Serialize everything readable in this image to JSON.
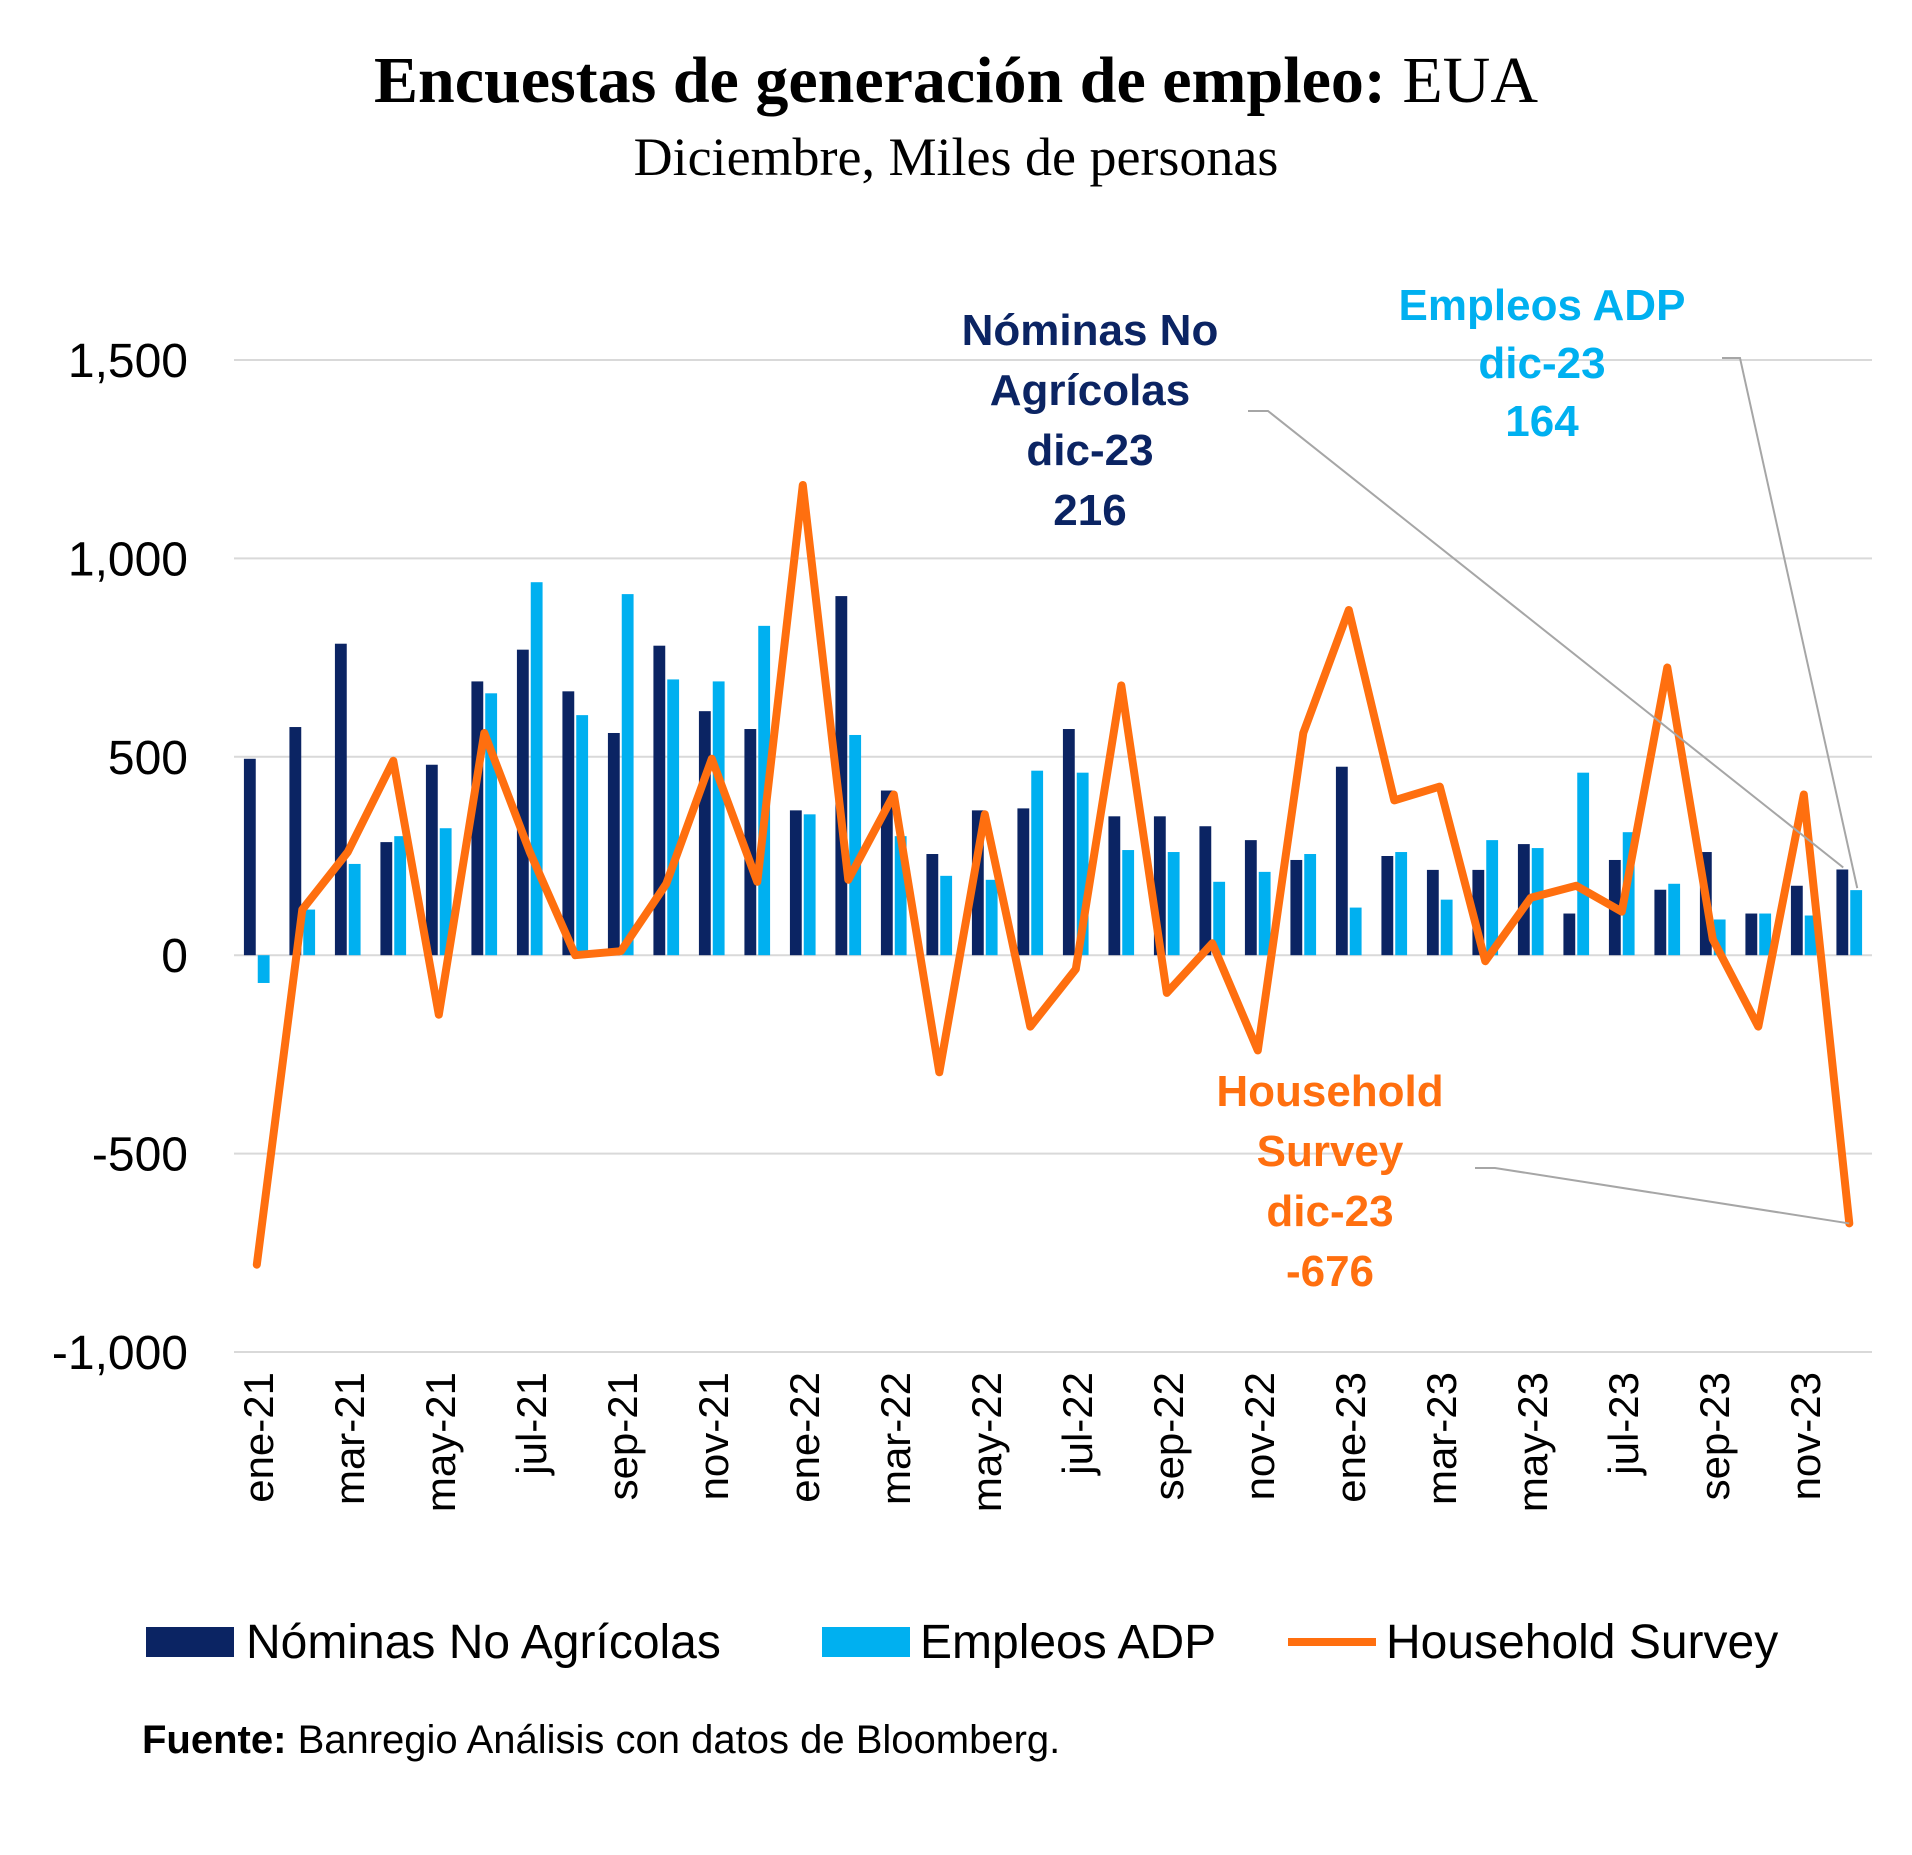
{
  "title": {
    "bold": "Encuestas de generación de empleo:",
    "normal": "EUA",
    "subtitle": "Diciembre, Miles de personas"
  },
  "colors": {
    "nominas": "#0b2463",
    "adp": "#00b0f0",
    "household": "#ff6f0f",
    "grid": "#d9d9d9",
    "leader": "#a6a6a6"
  },
  "chart_data": {
    "type": "bar",
    "categories": [
      "ene-21",
      "feb-21",
      "mar-21",
      "abr-21",
      "may-21",
      "jun-21",
      "jul-21",
      "ago-21",
      "sep-21",
      "oct-21",
      "nov-21",
      "dic-21",
      "ene-22",
      "feb-22",
      "mar-22",
      "abr-22",
      "may-22",
      "jun-22",
      "jul-22",
      "ago-22",
      "sep-22",
      "oct-22",
      "nov-22",
      "dic-22",
      "ene-23",
      "feb-23",
      "mar-23",
      "abr-23",
      "may-23",
      "jun-23",
      "jul-23",
      "ago-23",
      "sep-23",
      "oct-23",
      "nov-23",
      "dic-23"
    ],
    "tick_labels": [
      "ene-21",
      "mar-21",
      "may-21",
      "jul-21",
      "sep-21",
      "nov-21",
      "ene-22",
      "mar-22",
      "may-22",
      "jul-22",
      "sep-22",
      "nov-22",
      "ene-23",
      "mar-23",
      "may-23",
      "jul-23",
      "sep-23",
      "nov-23"
    ],
    "series": [
      {
        "name": "Nóminas No Agrícolas",
        "type": "bar",
        "values": [
          495,
          575,
          785,
          285,
          480,
          690,
          770,
          665,
          560,
          780,
          615,
          570,
          365,
          905,
          415,
          255,
          365,
          370,
          570,
          350,
          350,
          325,
          290,
          240,
          475,
          250,
          215,
          215,
          280,
          105,
          240,
          165,
          260,
          105,
          175,
          216
        ]
      },
      {
        "name": "Empleos ADP",
        "type": "bar",
        "values": [
          -70,
          115,
          230,
          300,
          320,
          660,
          940,
          605,
          910,
          695,
          690,
          830,
          355,
          555,
          300,
          200,
          190,
          465,
          460,
          265,
          260,
          185,
          210,
          255,
          120,
          260,
          140,
          290,
          270,
          460,
          310,
          180,
          90,
          105,
          100,
          164
        ]
      },
      {
        "name": "Household Survey",
        "type": "line",
        "values": [
          -780,
          115,
          260,
          490,
          -150,
          560,
          260,
          0,
          10,
          180,
          495,
          185,
          1185,
          190,
          405,
          -295,
          355,
          -180,
          -35,
          680,
          -95,
          30,
          -240,
          560,
          870,
          390,
          425,
          -15,
          145,
          175,
          110,
          725,
          40,
          -180,
          405,
          -676
        ]
      }
    ],
    "ylim": [
      -1000,
      1500
    ],
    "yticks": [
      -1000,
      -500,
      0,
      500,
      1000,
      1500
    ],
    "ytick_labels": [
      "-1,000",
      "-500",
      "0",
      "500",
      "1,000",
      "1,500"
    ],
    "grid": true,
    "legend_position": "bottom",
    "annotations": [
      {
        "series": "Nóminas No Agrícolas",
        "lines": [
          "Nóminas No",
          "Agrícolas",
          "dic-23",
          "216"
        ]
      },
      {
        "series": "Empleos ADP",
        "lines": [
          "Empleos ADP",
          "dic-23",
          "164"
        ]
      },
      {
        "series": "Household Survey",
        "lines": [
          "Household",
          "Survey",
          "dic-23",
          "-676"
        ]
      }
    ]
  },
  "legend": {
    "nominas": "Nóminas No Agrícolas",
    "adp": "Empleos ADP",
    "household": "Household Survey"
  },
  "source": {
    "label": "Fuente:",
    "text": "Banregio Análisis con datos de Bloomberg."
  }
}
